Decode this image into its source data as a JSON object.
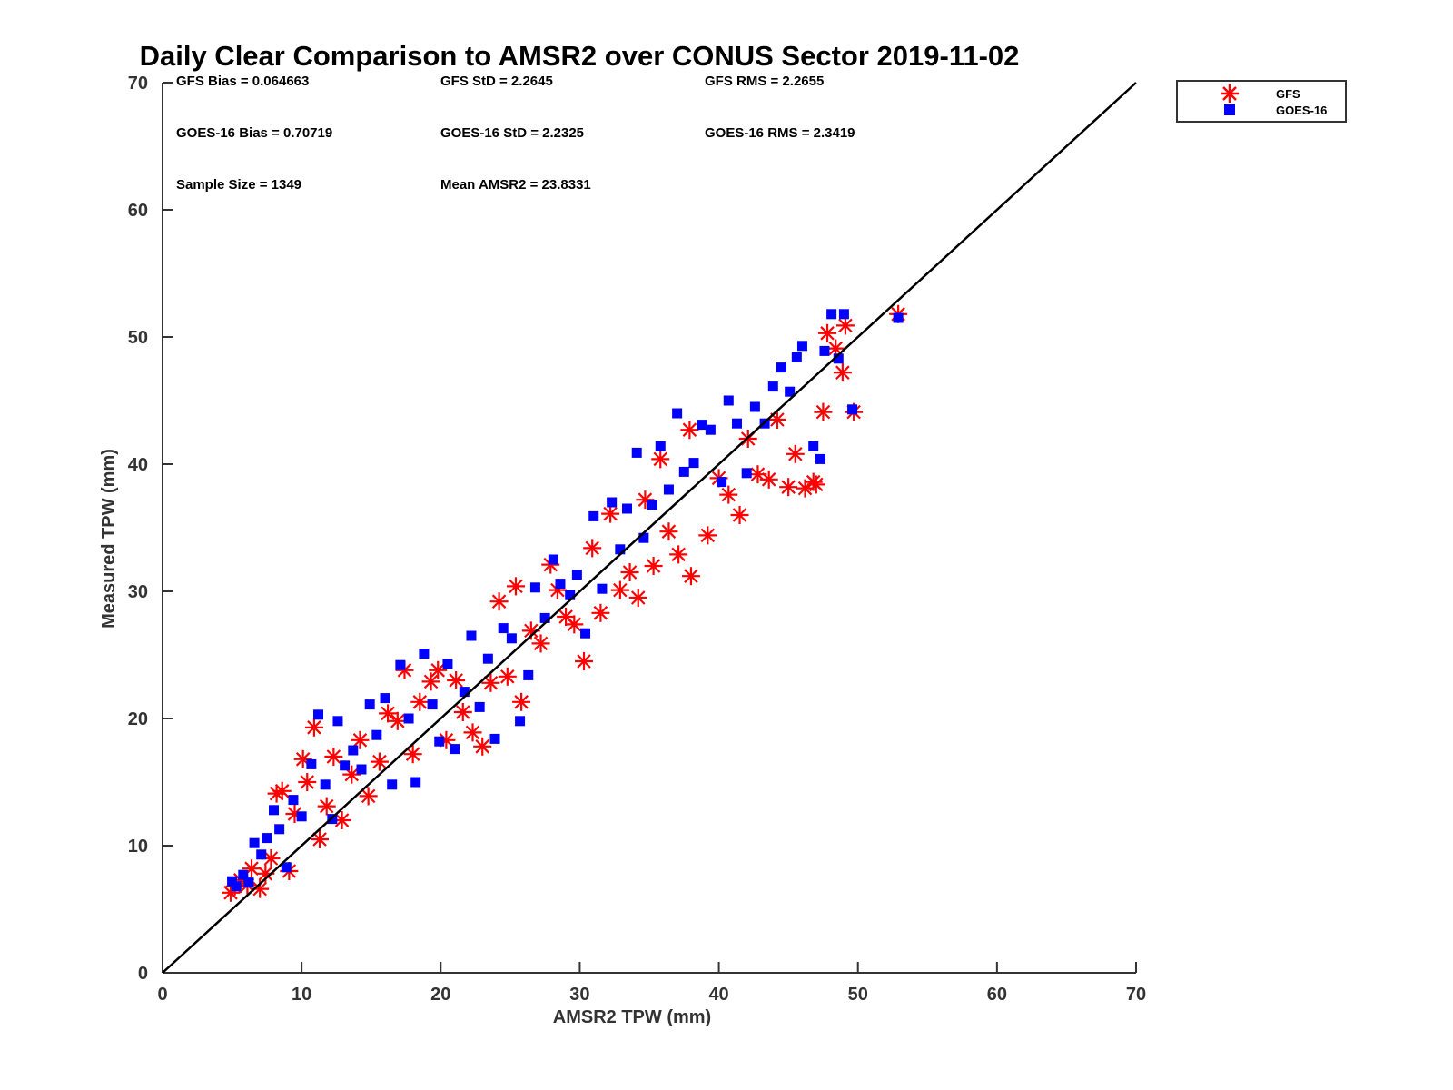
{
  "chart_data": {
    "type": "scatter",
    "title": "Daily Clear Comparison to AMSR2 over CONUS Sector 2019-11-02",
    "xlabel": "AMSR2 TPW (mm)",
    "ylabel": "Measured TPW (mm)",
    "xlim": [
      0,
      70
    ],
    "ylim": [
      0,
      70
    ],
    "xticks": [
      "0",
      "10",
      "20",
      "30",
      "40",
      "50",
      "60",
      "70"
    ],
    "yticks": [
      "0",
      "10",
      "20",
      "30",
      "40",
      "50",
      "60",
      "70"
    ],
    "grid": false,
    "legend_position": "outside-top-right",
    "reference_line": {
      "x": [
        0,
        70
      ],
      "y": [
        0,
        70
      ],
      "color": "#000000"
    },
    "stats": [
      "GFS Bias = 0.064663",
      "GFS StD = 2.2645",
      "GFS RMS = 2.2655",
      "GOES-16 Bias = 0.70719",
      "GOES-16 StD = 2.2325",
      "GOES-16 RMS = 2.3419",
      "Sample Size = 1349",
      "Mean AMSR2 = 23.8331"
    ],
    "series": [
      {
        "name": "GFS",
        "marker": "asterisk",
        "color": "#ff0000",
        "points": [
          [
            4.9,
            6.3
          ],
          [
            5.2,
            6.8
          ],
          [
            5.6,
            7.3
          ],
          [
            6.1,
            6.9
          ],
          [
            6.4,
            8.2
          ],
          [
            7.0,
            6.6
          ],
          [
            7.4,
            7.8
          ],
          [
            7.8,
            9.0
          ],
          [
            8.2,
            14.1
          ],
          [
            8.6,
            14.3
          ],
          [
            9.1,
            8.0
          ],
          [
            9.5,
            12.5
          ],
          [
            10.1,
            16.8
          ],
          [
            10.4,
            15.0
          ],
          [
            10.9,
            19.3
          ],
          [
            11.3,
            10.5
          ],
          [
            11.8,
            13.1
          ],
          [
            12.3,
            17.0
          ],
          [
            12.9,
            12.0
          ],
          [
            13.6,
            15.6
          ],
          [
            14.2,
            18.3
          ],
          [
            14.8,
            13.9
          ],
          [
            15.6,
            16.6
          ],
          [
            16.2,
            20.4
          ],
          [
            16.9,
            19.8
          ],
          [
            17.4,
            23.8
          ],
          [
            18.0,
            17.2
          ],
          [
            18.5,
            21.3
          ],
          [
            19.3,
            22.9
          ],
          [
            19.8,
            23.8
          ],
          [
            20.4,
            18.3
          ],
          [
            21.1,
            23.0
          ],
          [
            21.6,
            20.5
          ],
          [
            22.3,
            18.9
          ],
          [
            23.0,
            17.8
          ],
          [
            23.6,
            22.8
          ],
          [
            24.2,
            29.2
          ],
          [
            24.8,
            23.3
          ],
          [
            25.4,
            30.4
          ],
          [
            25.8,
            21.3
          ],
          [
            26.5,
            26.9
          ],
          [
            27.2,
            25.9
          ],
          [
            27.9,
            32.1
          ],
          [
            28.4,
            30.1
          ],
          [
            29.0,
            28.0
          ],
          [
            29.6,
            27.4
          ],
          [
            30.3,
            24.5
          ],
          [
            30.9,
            33.4
          ],
          [
            31.5,
            28.3
          ],
          [
            32.2,
            36.1
          ],
          [
            32.9,
            30.1
          ],
          [
            33.6,
            31.5
          ],
          [
            34.2,
            29.5
          ],
          [
            34.7,
            37.2
          ],
          [
            35.3,
            32.0
          ],
          [
            35.8,
            40.4
          ],
          [
            36.4,
            34.7
          ],
          [
            37.1,
            32.9
          ],
          [
            37.9,
            42.7
          ],
          [
            38.0,
            31.2
          ],
          [
            39.2,
            34.4
          ],
          [
            40.0,
            38.9
          ],
          [
            40.7,
            37.6
          ],
          [
            41.5,
            36.0
          ],
          [
            42.1,
            42.0
          ],
          [
            42.8,
            39.2
          ],
          [
            43.6,
            38.8
          ],
          [
            44.2,
            43.5
          ],
          [
            45.0,
            38.2
          ],
          [
            45.5,
            40.8
          ],
          [
            46.2,
            38.1
          ],
          [
            46.8,
            38.6
          ],
          [
            47.0,
            38.4
          ],
          [
            47.5,
            44.1
          ],
          [
            47.8,
            50.3
          ],
          [
            48.4,
            49.1
          ],
          [
            48.9,
            47.2
          ],
          [
            49.1,
            50.9
          ],
          [
            49.7,
            44.1
          ],
          [
            52.9,
            51.8
          ]
        ]
      },
      {
        "name": "GOES-16",
        "marker": "square",
        "color": "#0000ff",
        "points": [
          [
            5.0,
            7.2
          ],
          [
            5.3,
            6.8
          ],
          [
            5.8,
            7.7
          ],
          [
            6.2,
            7.1
          ],
          [
            6.6,
            10.2
          ],
          [
            7.1,
            9.3
          ],
          [
            7.5,
            10.6
          ],
          [
            8.0,
            12.8
          ],
          [
            8.4,
            11.3
          ],
          [
            8.9,
            8.3
          ],
          [
            9.4,
            13.6
          ],
          [
            10.0,
            12.3
          ],
          [
            10.7,
            16.4
          ],
          [
            11.2,
            20.3
          ],
          [
            11.7,
            14.8
          ],
          [
            12.2,
            12.1
          ],
          [
            12.6,
            19.8
          ],
          [
            13.1,
            16.3
          ],
          [
            13.7,
            17.5
          ],
          [
            14.3,
            16.0
          ],
          [
            14.9,
            21.1
          ],
          [
            15.4,
            18.7
          ],
          [
            16.0,
            21.6
          ],
          [
            16.5,
            14.8
          ],
          [
            17.1,
            24.2
          ],
          [
            17.7,
            20.0
          ],
          [
            18.2,
            15.0
          ],
          [
            18.8,
            25.1
          ],
          [
            19.4,
            21.1
          ],
          [
            19.9,
            18.2
          ],
          [
            20.5,
            24.3
          ],
          [
            21.0,
            17.6
          ],
          [
            21.7,
            22.1
          ],
          [
            22.2,
            26.5
          ],
          [
            22.8,
            20.9
          ],
          [
            23.4,
            24.7
          ],
          [
            23.9,
            18.4
          ],
          [
            24.5,
            27.1
          ],
          [
            25.1,
            26.3
          ],
          [
            25.7,
            19.8
          ],
          [
            26.3,
            23.4
          ],
          [
            26.8,
            30.3
          ],
          [
            27.5,
            27.9
          ],
          [
            28.1,
            32.5
          ],
          [
            28.6,
            30.6
          ],
          [
            29.3,
            29.7
          ],
          [
            29.8,
            31.3
          ],
          [
            30.4,
            26.7
          ],
          [
            31.0,
            35.9
          ],
          [
            31.6,
            30.2
          ],
          [
            32.3,
            37.0
          ],
          [
            32.9,
            33.3
          ],
          [
            33.4,
            36.5
          ],
          [
            34.1,
            40.9
          ],
          [
            34.6,
            34.2
          ],
          [
            35.2,
            36.8
          ],
          [
            35.8,
            41.4
          ],
          [
            36.4,
            38.0
          ],
          [
            37.0,
            44.0
          ],
          [
            37.5,
            39.4
          ],
          [
            38.2,
            40.1
          ],
          [
            38.8,
            43.1
          ],
          [
            39.4,
            42.7
          ],
          [
            40.2,
            38.6
          ],
          [
            40.7,
            45.0
          ],
          [
            41.3,
            43.2
          ],
          [
            42.0,
            39.3
          ],
          [
            42.6,
            44.5
          ],
          [
            43.3,
            43.2
          ],
          [
            43.9,
            46.1
          ],
          [
            44.5,
            47.6
          ],
          [
            45.1,
            45.7
          ],
          [
            45.6,
            48.4
          ],
          [
            46.0,
            49.3
          ],
          [
            46.8,
            41.4
          ],
          [
            47.3,
            40.4
          ],
          [
            47.6,
            48.9
          ],
          [
            48.1,
            51.8
          ],
          [
            48.6,
            48.3
          ],
          [
            49.0,
            51.8
          ],
          [
            49.6,
            44.3
          ],
          [
            52.9,
            51.5
          ]
        ]
      }
    ]
  }
}
